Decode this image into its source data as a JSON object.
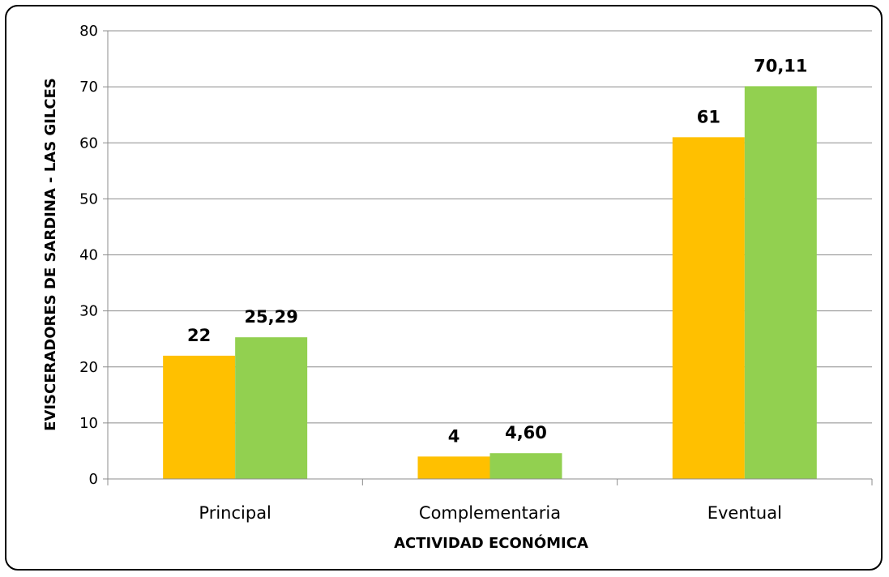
{
  "chart_data": {
    "type": "bar",
    "categories": [
      "Principal",
      "Complementaria",
      "Eventual"
    ],
    "series": [
      {
        "values": [
          22,
          4,
          61
        ],
        "labels": [
          "22",
          "4",
          "61"
        ],
        "color": "#FFC000"
      },
      {
        "values": [
          25.29,
          4.6,
          70.11
        ],
        "labels": [
          "25,29",
          "4,60",
          "70,11"
        ],
        "color": "#92D050"
      }
    ],
    "xlabel": "ACTIVIDAD ECONÓMICA",
    "ylabel": "EVISCERADORES DE SARDINA - LAS GILCES",
    "ylim": [
      0,
      80
    ],
    "yticks": [
      0,
      10,
      20,
      30,
      40,
      50,
      60,
      70,
      80
    ],
    "grid": true
  }
}
